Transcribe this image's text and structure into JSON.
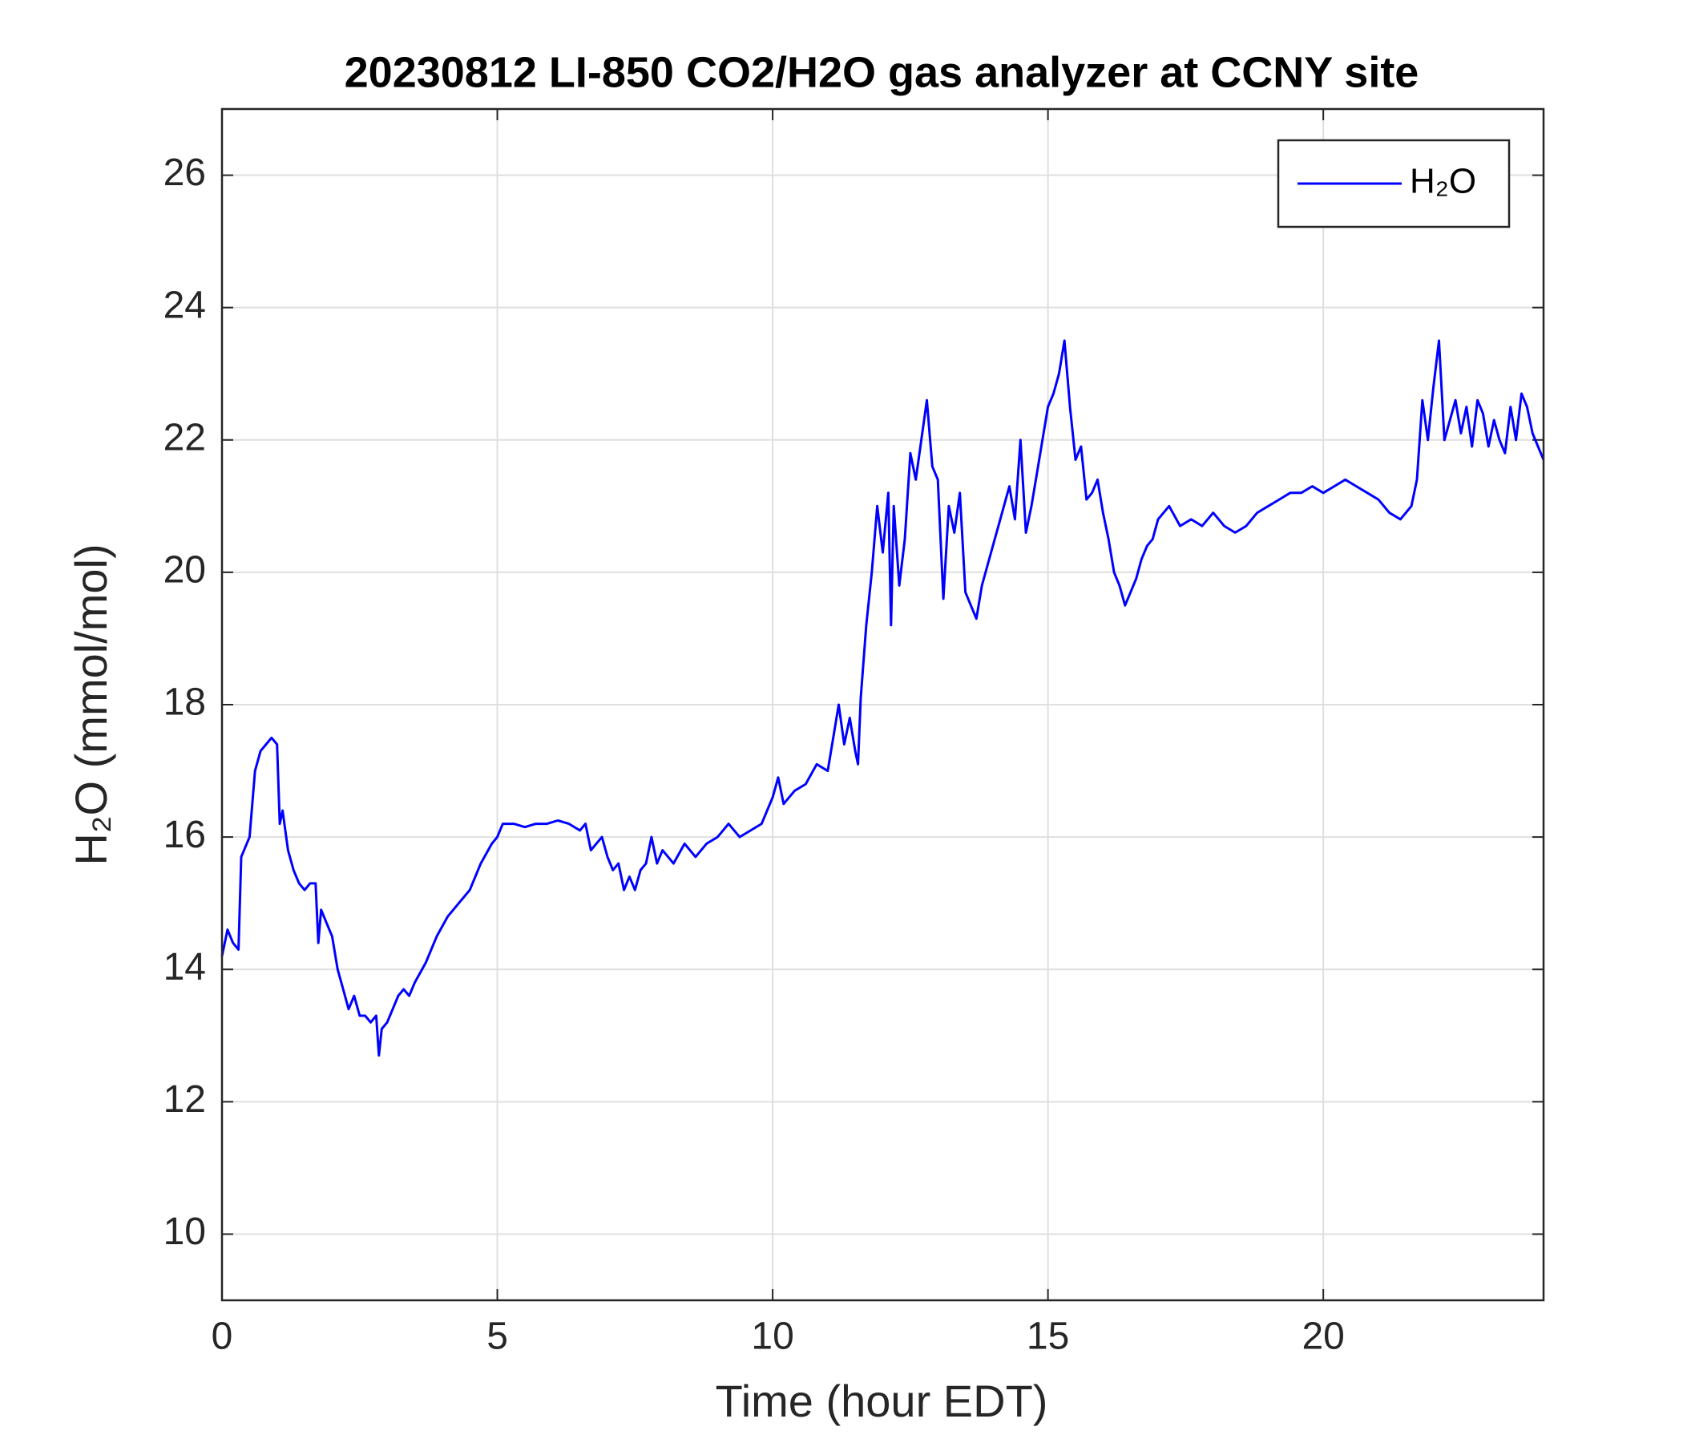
{
  "chart_data": {
    "type": "line",
    "title": "20230812 LI-850 CO2/H2O gas analyzer at CCNY site",
    "xlabel": "Time (hour EDT)",
    "ylabel": "H₂O (mmol/mol)",
    "xlim": [
      0,
      24
    ],
    "xticks": [
      0,
      5,
      10,
      15,
      20
    ],
    "ylim": [
      9,
      27
    ],
    "yticks": [
      10,
      12,
      14,
      16,
      18,
      20,
      22,
      24,
      26
    ],
    "grid": true,
    "legend": "upper right",
    "x": [
      0,
      0.1,
      0.2,
      0.3,
      0.35,
      0.5,
      0.6,
      0.7,
      0.8,
      0.9,
      1.0,
      1.05,
      1.1,
      1.2,
      1.3,
      1.4,
      1.5,
      1.6,
      1.7,
      1.75,
      1.8,
      1.9,
      2.0,
      2.1,
      2.2,
      2.3,
      2.4,
      2.5,
      2.6,
      2.7,
      2.8,
      2.85,
      2.9,
      3.0,
      3.1,
      3.2,
      3.3,
      3.4,
      3.5,
      3.7,
      3.9,
      4.1,
      4.3,
      4.5,
      4.7,
      4.9,
      5.0,
      5.1,
      5.3,
      5.5,
      5.7,
      5.9,
      6.1,
      6.3,
      6.5,
      6.6,
      6.7,
      6.9,
      7.0,
      7.1,
      7.2,
      7.3,
      7.4,
      7.5,
      7.6,
      7.7,
      7.8,
      7.9,
      8.0,
      8.2,
      8.4,
      8.6,
      8.8,
      9.0,
      9.2,
      9.4,
      9.6,
      9.8,
      10.0,
      10.1,
      10.2,
      10.4,
      10.6,
      10.8,
      11.0,
      11.1,
      11.2,
      11.3,
      11.4,
      11.5,
      11.55,
      11.6,
      11.7,
      11.8,
      11.9,
      12.0,
      12.1,
      12.15,
      12.2,
      12.3,
      12.4,
      12.5,
      12.6,
      12.7,
      12.8,
      12.9,
      13.0,
      13.1,
      13.2,
      13.3,
      13.4,
      13.5,
      13.6,
      13.7,
      13.8,
      14.0,
      14.1,
      14.3,
      14.4,
      14.5,
      14.6,
      14.7,
      14.8,
      15.0,
      15.1,
      15.2,
      15.3,
      15.4,
      15.5,
      15.6,
      15.7,
      15.8,
      15.9,
      16.0,
      16.1,
      16.2,
      16.3,
      16.4,
      16.5,
      16.6,
      16.7,
      16.8,
      16.9,
      17.0,
      17.2,
      17.4,
      17.6,
      17.8,
      18.0,
      18.2,
      18.4,
      18.6,
      18.8,
      19.0,
      19.2,
      19.4,
      19.6,
      19.8,
      20.0,
      20.2,
      20.4,
      20.6,
      20.8,
      21.0,
      21.2,
      21.4,
      21.6,
      21.7,
      21.8,
      21.9,
      22.0,
      22.1,
      22.2,
      22.3,
      22.4,
      22.5,
      22.6,
      22.7,
      22.8,
      22.9,
      23.0,
      23.1,
      23.2,
      23.3,
      23.4,
      23.5,
      23.6,
      23.7,
      23.8,
      23.9,
      24.0
    ],
    "series": [
      {
        "name": "H₂O",
        "color": "#0000ff",
        "values": [
          14.2,
          14.6,
          14.4,
          14.3,
          15.7,
          16.0,
          17.0,
          17.3,
          17.4,
          17.5,
          17.4,
          16.2,
          16.4,
          15.8,
          15.5,
          15.3,
          15.2,
          15.3,
          15.3,
          14.4,
          14.9,
          14.7,
          14.5,
          14.0,
          13.7,
          13.4,
          13.6,
          13.3,
          13.3,
          13.2,
          13.3,
          12.7,
          13.1,
          13.2,
          13.4,
          13.6,
          13.7,
          13.6,
          13.8,
          14.1,
          14.5,
          14.8,
          15.0,
          15.2,
          15.6,
          15.9,
          16.0,
          16.2,
          16.2,
          16.15,
          16.2,
          16.2,
          16.25,
          16.2,
          16.1,
          16.2,
          15.8,
          16.0,
          15.7,
          15.5,
          15.6,
          15.2,
          15.4,
          15.2,
          15.5,
          15.6,
          16.0,
          15.6,
          15.8,
          15.6,
          15.9,
          15.7,
          15.9,
          16.0,
          16.2,
          16.0,
          16.1,
          16.2,
          16.6,
          16.9,
          16.5,
          16.7,
          16.8,
          17.1,
          17.0,
          17.5,
          18.0,
          17.4,
          17.8,
          17.3,
          17.1,
          18.1,
          19.2,
          20.0,
          21.0,
          20.3,
          21.2,
          19.2,
          21.0,
          19.8,
          20.5,
          21.8,
          21.4,
          22.0,
          22.6,
          21.6,
          21.4,
          19.6,
          21.0,
          20.6,
          21.2,
          19.7,
          19.5,
          19.3,
          19.8,
          20.4,
          20.7,
          21.3,
          20.8,
          22.0,
          20.6,
          21.0,
          21.5,
          22.5,
          22.7,
          23.0,
          23.5,
          22.5,
          21.7,
          21.9,
          21.1,
          21.2,
          21.4,
          20.9,
          20.5,
          20.0,
          19.8,
          19.5,
          19.7,
          19.9,
          20.2,
          20.4,
          20.5,
          20.8,
          21.0,
          20.7,
          20.8,
          20.7,
          20.9,
          20.7,
          20.6,
          20.7,
          20.9,
          21.0,
          21.1,
          21.2,
          21.2,
          21.3,
          21.2,
          21.3,
          21.4,
          21.3,
          21.2,
          21.1,
          20.9,
          20.8,
          21.0,
          21.4,
          22.6,
          22.0,
          22.8,
          23.5,
          22.0,
          22.3,
          22.6,
          22.1,
          22.5,
          21.9,
          22.6,
          22.4,
          21.9,
          22.3,
          22.0,
          21.8,
          22.5,
          22.0,
          22.7,
          22.5,
          22.1,
          21.9,
          21.7
        ]
      }
    ]
  }
}
